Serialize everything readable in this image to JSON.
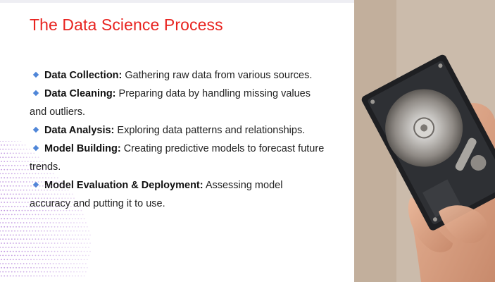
{
  "slide": {
    "title": "The Data Science Process",
    "bullets": [
      {
        "term": "Data Collection:",
        "text": " Gathering raw data from various sources."
      },
      {
        "term": "Data Cleaning:",
        "text": " Preparing data by handling missing values and outliers."
      },
      {
        "term": "Data Analysis:",
        "text": " Exploring data patterns and relationships."
      },
      {
        "term": "Model Building:",
        "text": " Creating predictive models to forecast future trends."
      },
      {
        "term": "Model Evaluation & Deployment:",
        "text": " Assessing model accuracy and putting it to use."
      }
    ]
  },
  "colors": {
    "title": "#e8231f",
    "bullet": "#4f86d8",
    "dots": "#b07ad8"
  },
  "decor": {
    "photo": "hand-holding-hard-drive",
    "pattern": "purple-dot-wave"
  }
}
